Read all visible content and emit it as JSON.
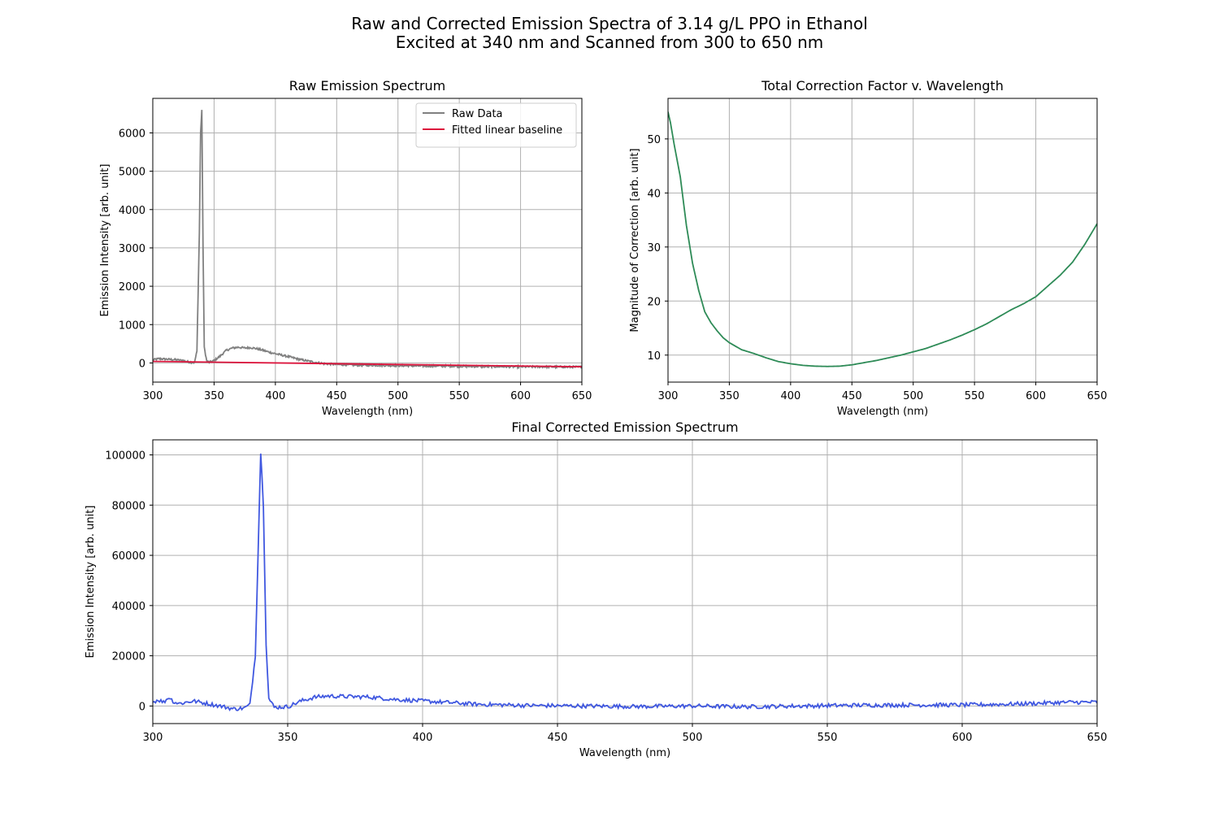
{
  "figure": {
    "title_line1": "Raw and Corrected Emission Spectra of 3.14 g/L PPO in Ethanol",
    "title_line2": "Excited at 340 nm and Scanned from 300 to 650 nm"
  },
  "chart_data": [
    {
      "id": "raw",
      "type": "line",
      "title": "Raw Emission Spectrum",
      "xlabel": "Wavelength (nm)",
      "ylabel": "Emission Intensity [arb. unit]",
      "xlim": [
        300,
        650
      ],
      "ylim": [
        -500,
        6900
      ],
      "xticks": [
        300,
        350,
        400,
        450,
        500,
        550,
        600,
        650
      ],
      "yticks": [
        0,
        1000,
        2000,
        3000,
        4000,
        5000,
        6000
      ],
      "grid": true,
      "legend": "upper right",
      "series": [
        {
          "name": "Raw Data",
          "color": "#808080",
          "noise": 25,
          "x": [
            300,
            305,
            310,
            315,
            320,
            325,
            330,
            334,
            336,
            338,
            339,
            340,
            341,
            342,
            344,
            346,
            350,
            355,
            360,
            365,
            370,
            375,
            380,
            385,
            390,
            395,
            400,
            410,
            420,
            430,
            440,
            450,
            460,
            470,
            480,
            500,
            520,
            540,
            560,
            580,
            600,
            620,
            640,
            650
          ],
          "y": [
            80,
            110,
            100,
            90,
            80,
            60,
            20,
            10,
            300,
            3400,
            6000,
            6600,
            3000,
            400,
            50,
            20,
            60,
            180,
            330,
            390,
            410,
            390,
            400,
            370,
            330,
            280,
            240,
            170,
            90,
            30,
            -20,
            -40,
            -50,
            -60,
            -60,
            -70,
            -80,
            -80,
            -90,
            -95,
            -100,
            -100,
            -105,
            -105
          ]
        },
        {
          "name": "Fitted linear baseline",
          "color": "#dc143c",
          "x": [
            300,
            650
          ],
          "y": [
            40,
            -100
          ]
        }
      ]
    },
    {
      "id": "correction",
      "type": "line",
      "title": "Total Correction Factor v. Wavelength",
      "xlabel": "Wavelength (nm)",
      "ylabel": "Magnitude of Correction [arb. unit]",
      "xlim": [
        300,
        650
      ],
      "ylim": [
        5,
        57.5
      ],
      "xticks": [
        300,
        350,
        400,
        450,
        500,
        550,
        600,
        650
      ],
      "yticks": [
        10,
        20,
        30,
        40,
        50
      ],
      "grid": true,
      "series": [
        {
          "name": "",
          "color": "#2e8b57",
          "noise": 0,
          "x": [
            300,
            302,
            305,
            310,
            315,
            320,
            325,
            330,
            335,
            340,
            345,
            350,
            360,
            370,
            380,
            390,
            400,
            410,
            420,
            430,
            440,
            450,
            460,
            470,
            480,
            490,
            500,
            510,
            520,
            530,
            540,
            550,
            560,
            570,
            580,
            590,
            600,
            610,
            620,
            630,
            640,
            650
          ],
          "y": [
            55,
            53,
            49,
            43,
            34,
            27,
            22,
            18,
            16,
            14.5,
            13.2,
            12.3,
            11,
            10.3,
            9.5,
            8.8,
            8.4,
            8.1,
            7.95,
            7.9,
            7.95,
            8.2,
            8.6,
            9,
            9.5,
            10,
            10.6,
            11.2,
            12,
            12.8,
            13.7,
            14.7,
            15.8,
            17.1,
            18.4,
            19.5,
            20.8,
            22.8,
            24.8,
            27.2,
            30.5,
            34.3
          ]
        }
      ]
    },
    {
      "id": "corrected",
      "type": "line",
      "title": "Final Corrected Emission Spectrum",
      "xlabel": "Wavelength (nm)",
      "ylabel": "Emission Intensity [arb. unit]",
      "xlim": [
        300,
        650
      ],
      "ylim": [
        -7000,
        106000
      ],
      "xticks": [
        300,
        350,
        400,
        450,
        500,
        550,
        600,
        650
      ],
      "yticks": [
        0,
        20000,
        40000,
        60000,
        80000,
        100000
      ],
      "grid": true,
      "series": [
        {
          "name": "",
          "color": "#4058e0",
          "noise": 800,
          "x": [
            300,
            302,
            304,
            306,
            308,
            310,
            315,
            320,
            325,
            330,
            334,
            336,
            338,
            339,
            340,
            341,
            342,
            343,
            345,
            350,
            355,
            360,
            365,
            370,
            380,
            390,
            400,
            420,
            440,
            460,
            480,
            500,
            520,
            540,
            560,
            580,
            600,
            620,
            640,
            650
          ],
          "y": [
            1500,
            2500,
            1500,
            3500,
            1500,
            1000,
            2000,
            1000,
            0,
            -1200,
            -800,
            500,
            20000,
            60000,
            101000,
            80000,
            25000,
            3000,
            -500,
            -300,
            2000,
            3500,
            4000,
            3800,
            3600,
            2600,
            2000,
            700,
            200,
            0,
            -200,
            0,
            -300,
            0,
            300,
            400,
            400,
            800,
            1500,
            1500
          ]
        }
      ]
    }
  ]
}
